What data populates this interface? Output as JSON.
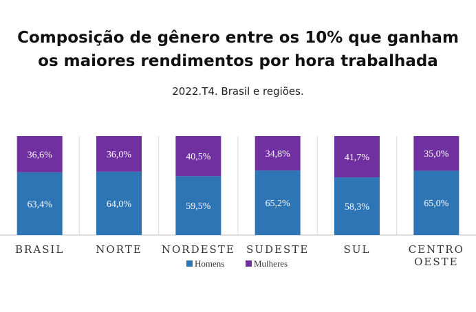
{
  "chart_data": {
    "type": "bar",
    "stacked": true,
    "title_line1": "Composição de gênero entre os 10% que ganham",
    "title_line2": "os maiores rendimentos por hora trabalhada",
    "subtitle": "2022.T4. Brasil e regiões.",
    "categories": [
      [
        "BRASIL"
      ],
      [
        "NORTE"
      ],
      [
        "NORDESTE"
      ],
      [
        "SUDESTE"
      ],
      [
        "SUL"
      ],
      [
        "CENTRO",
        "OESTE"
      ]
    ],
    "ylim": [
      0,
      100
    ],
    "series": [
      {
        "name": "Homens",
        "color": "#2E75B6",
        "values": [
          63.4,
          64.0,
          59.5,
          65.2,
          58.3,
          65.0
        ],
        "labels": [
          "63,4%",
          "64,0%",
          "59,5%",
          "65,2%",
          "58,3%",
          "65,0%"
        ]
      },
      {
        "name": "Mulheres",
        "color": "#7030A0",
        "values": [
          36.6,
          36.0,
          40.5,
          34.8,
          41.7,
          35.0
        ],
        "labels": [
          "36,6%",
          "36,0%",
          "40,5%",
          "34,8%",
          "41,7%",
          "35,0%"
        ]
      }
    ],
    "legend_position": "bottom"
  },
  "colors": {
    "gridline": "#d9d9d9",
    "axis": "#bfbfbf"
  }
}
